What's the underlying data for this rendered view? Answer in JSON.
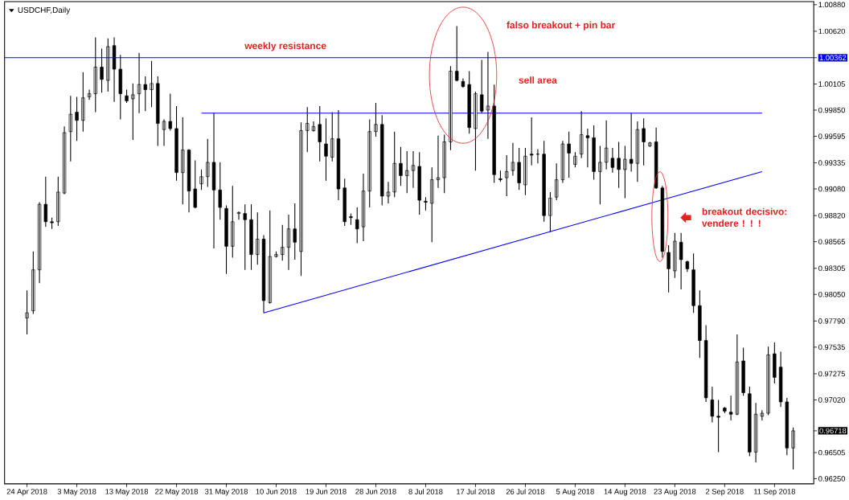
{
  "chart_data": {
    "type": "candlestick",
    "title": "USDCHF,Daily",
    "categories": [
      "24 Apr 2018",
      null,
      null,
      null,
      null,
      null,
      null,
      null,
      "3 May 2018",
      null,
      null,
      null,
      null,
      null,
      null,
      null,
      "13 May 2018",
      null,
      null,
      null,
      null,
      null,
      null,
      null,
      "22 May 2018",
      null,
      null,
      null,
      null,
      null,
      null,
      null,
      "31 May 2018",
      null,
      null,
      null,
      null,
      null,
      null,
      null,
      "10 Jun 2018",
      null,
      null,
      null,
      null,
      null,
      null,
      null,
      "19 Jun 2018",
      null,
      null,
      null,
      null,
      null,
      null,
      null,
      "28 Jun 2018",
      null,
      null,
      null,
      null,
      null,
      null,
      null,
      "8 Jul 2018",
      null,
      null,
      null,
      null,
      null,
      null,
      null,
      "17 Jul 2018",
      null,
      null,
      null,
      null,
      null,
      null,
      null,
      "26 Jul 2018",
      null,
      null,
      null,
      null,
      null,
      null,
      null,
      "5 Aug 2018",
      null,
      null,
      null,
      null,
      null,
      null,
      null,
      "14 Aug 2018",
      null,
      null,
      null,
      null,
      null,
      null,
      null,
      "23 Aug 2018",
      null,
      null,
      null,
      null,
      null,
      null,
      null,
      "2 Sep 2018",
      null,
      null,
      null,
      null,
      null,
      null,
      null,
      "11 Sep 2018",
      null,
      null,
      null
    ],
    "ohlc": [
      [
        0.9782,
        0.9809,
        0.9766,
        0.9787
      ],
      [
        0.9789,
        0.9847,
        0.9786,
        0.9829
      ],
      [
        0.9829,
        0.9895,
        0.9816,
        0.9893
      ],
      [
        0.9893,
        0.992,
        0.9871,
        0.9876
      ],
      [
        0.9876,
        0.988,
        0.9869,
        0.9875
      ],
      [
        0.9876,
        0.992,
        0.9872,
        0.9905
      ],
      [
        0.9904,
        0.9969,
        0.9903,
        0.9963
      ],
      [
        0.9964,
        0.9999,
        0.9935,
        0.9981
      ],
      [
        0.9983,
        0.9998,
        0.9955,
        0.9975
      ],
      [
        0.9975,
        1.0022,
        0.9964,
        0.9997
      ],
      [
        0.9998,
        1.0005,
        0.9995,
        1.0001
      ],
      [
        1.0001,
        1.0056,
        0.9983,
        1.0027
      ],
      [
        1.0027,
        1.0045,
        1.0002,
        1.0015
      ],
      [
        1.0014,
        1.0055,
        1.0003,
        1.0047
      ],
      [
        1.0048,
        1.0056,
        0.9993,
        1.0025
      ],
      [
        1.0025,
        1.0039,
        0.9976,
        1.0001
      ],
      [
        0.9999,
        1.0005,
        0.9992,
        0.9994
      ],
      [
        0.9996,
        1.0011,
        0.9956,
        1.0
      ],
      [
        1.0001,
        1.0041,
        0.9982,
        1.001
      ],
      [
        1.001,
        1.0018,
        0.9984,
        1.0005
      ],
      [
        1.0005,
        1.0033,
        0.9988,
        1.0011
      ],
      [
        1.0011,
        1.0018,
        0.995,
        0.9972
      ],
      [
        0.9966,
        0.9976,
        0.995,
        0.9974
      ],
      [
        0.9974,
        1.0001,
        0.9965,
        0.9967
      ],
      [
        0.9967,
        0.9989,
        0.9916,
        0.9924
      ],
      [
        0.9924,
        0.9978,
        0.9893,
        0.9946
      ],
      [
        0.9946,
        0.9947,
        0.9885,
        0.9906
      ],
      [
        0.9908,
        0.9936,
        0.9889,
        0.989
      ],
      [
        0.9913,
        0.9927,
        0.9907,
        0.992
      ],
      [
        0.992,
        0.9957,
        0.991,
        0.9934
      ],
      [
        0.9934,
        0.9982,
        0.985,
        0.9907
      ],
      [
        0.9907,
        0.9934,
        0.9878,
        0.989
      ],
      [
        0.9889,
        0.9892,
        0.9825,
        0.9852
      ],
      [
        0.9852,
        0.9911,
        0.9841,
        0.9876
      ],
      [
        0.9884,
        0.9886,
        0.9878,
        0.9885
      ],
      [
        0.9884,
        0.9893,
        0.9829,
        0.9878
      ],
      [
        0.9878,
        0.9893,
        0.9829,
        0.9844
      ],
      [
        0.9844,
        0.9885,
        0.9834,
        0.9859
      ],
      [
        0.9859,
        0.9863,
        0.9787,
        0.9799
      ],
      [
        0.9797,
        0.9887,
        0.9796,
        0.9842
      ],
      [
        0.9842,
        0.9847,
        0.9841,
        0.9844
      ],
      [
        0.9844,
        0.9873,
        0.9838,
        0.9851
      ],
      [
        0.9851,
        0.9883,
        0.9829,
        0.9869
      ],
      [
        0.9869,
        0.9894,
        0.9839,
        0.9856
      ],
      [
        0.9847,
        0.9973,
        0.9823,
        0.9965
      ],
      [
        0.9965,
        0.9988,
        0.9944,
        0.9972
      ],
      [
        0.9965,
        0.9974,
        0.9964,
        0.9969
      ],
      [
        0.9971,
        0.9989,
        0.9935,
        0.9954
      ],
      [
        0.9952,
        0.9977,
        0.9916,
        0.994
      ],
      [
        0.9939,
        0.9983,
        0.9935,
        0.9957
      ],
      [
        0.9957,
        0.9985,
        0.9897,
        0.9908
      ],
      [
        0.9909,
        0.9918,
        0.9872,
        0.9876
      ],
      [
        0.9881,
        0.9884,
        0.9873,
        0.988
      ],
      [
        0.9878,
        0.989,
        0.9855,
        0.9869
      ],
      [
        0.9871,
        0.9923,
        0.9857,
        0.9906
      ],
      [
        0.9906,
        0.9976,
        0.989,
        0.9964
      ],
      [
        0.9964,
        0.9992,
        0.9959,
        0.9971
      ],
      [
        0.9971,
        0.998,
        0.9892,
        0.9901
      ],
      [
        0.9901,
        0.9915,
        0.9894,
        0.9905
      ],
      [
        0.9905,
        0.9964,
        0.99,
        0.9933
      ],
      [
        0.9933,
        0.9949,
        0.9911,
        0.9921
      ],
      [
        0.9921,
        0.9945,
        0.9904,
        0.9926
      ],
      [
        0.9926,
        0.9945,
        0.9909,
        0.9931
      ],
      [
        0.993,
        0.9944,
        0.9883,
        0.9897
      ],
      [
        0.9896,
        0.99,
        0.9887,
        0.9895
      ],
      [
        0.9894,
        0.9929,
        0.9856,
        0.9917
      ],
      [
        0.9917,
        0.996,
        0.9909,
        0.9919
      ],
      [
        0.9919,
        0.9961,
        0.9904,
        0.9954
      ],
      [
        0.9954,
        1.0028,
        0.9946,
        1.0023
      ],
      [
        1.0023,
        1.0067,
        1.0013,
        1.0014
      ],
      [
        1.0013,
        1.0016,
        1.0007,
        1.0008
      ],
      [
        1.001,
        1.0023,
        0.9962,
        0.9968
      ],
      [
        0.9967,
        1.0003,
        0.9926,
        1.0001
      ],
      [
        1.0,
        1.0034,
        0.9982,
        0.9984
      ],
      [
        0.9985,
        1.0042,
        0.9957,
        0.9989
      ],
      [
        0.9989,
        1.001,
        0.9914,
        0.9922
      ],
      [
        0.9918,
        0.9926,
        0.9915,
        0.9917
      ],
      [
        0.9919,
        0.9941,
        0.9901,
        0.9925
      ],
      [
        0.9926,
        0.9953,
        0.9921,
        0.9934
      ],
      [
        0.9934,
        0.9948,
        0.9907,
        0.9914
      ],
      [
        0.9912,
        0.9948,
        0.9902,
        0.994
      ],
      [
        0.9942,
        0.9978,
        0.9931,
        0.9941
      ],
      [
        0.9942,
        0.9947,
        0.9933,
        0.9942
      ],
      [
        0.9942,
        0.9955,
        0.9876,
        0.9882
      ],
      [
        0.9882,
        0.9905,
        0.9866,
        0.9899
      ],
      [
        0.99,
        0.9933,
        0.9897,
        0.9917
      ],
      [
        0.9917,
        0.9955,
        0.9914,
        0.9952
      ],
      [
        0.9952,
        0.9964,
        0.9919,
        0.9943
      ],
      [
        0.9932,
        0.9944,
        0.9929,
        0.994
      ],
      [
        0.9942,
        0.9984,
        0.9938,
        0.9961
      ],
      [
        0.996,
        0.9967,
        0.9929,
        0.9958
      ],
      [
        0.9958,
        0.997,
        0.9917,
        0.9925
      ],
      [
        0.9925,
        0.995,
        0.9893,
        0.9934
      ],
      [
        0.9934,
        0.9975,
        0.9927,
        0.9948
      ],
      [
        0.9938,
        0.9948,
        0.9924,
        0.9929
      ],
      [
        0.9938,
        0.9954,
        0.9909,
        0.9927
      ],
      [
        0.9927,
        0.995,
        0.9899,
        0.9937
      ],
      [
        0.9937,
        0.9982,
        0.9925,
        0.9933
      ],
      [
        0.9933,
        0.9974,
        0.9915,
        0.9966
      ],
      [
        0.9967,
        0.9977,
        0.9931,
        0.9954
      ],
      [
        0.995,
        0.9954,
        0.9949,
        0.9953
      ],
      [
        0.9954,
        0.9968,
        0.9908,
        0.9909
      ],
      [
        0.9909,
        0.9911,
        0.9841,
        0.9847
      ],
      [
        0.9846,
        0.9853,
        0.9807,
        0.983
      ],
      [
        0.9828,
        0.9865,
        0.9821,
        0.9857
      ],
      [
        0.9856,
        0.9865,
        0.981,
        0.9839
      ],
      [
        0.9837,
        0.9838,
        0.9827,
        0.983
      ],
      [
        0.9829,
        0.9845,
        0.9787,
        0.9794
      ],
      [
        0.9794,
        0.9809,
        0.9743,
        0.976
      ],
      [
        0.976,
        0.9775,
        0.97,
        0.9704
      ],
      [
        0.9702,
        0.9715,
        0.968,
        0.9686
      ],
      [
        0.9686,
        0.9702,
        0.9651,
        0.9685
      ],
      [
        0.9694,
        0.9695,
        0.9689,
        0.9691
      ],
      [
        0.969,
        0.9706,
        0.9682,
        0.9688
      ],
      [
        0.9688,
        0.9766,
        0.9687,
        0.9739
      ],
      [
        0.974,
        0.9753,
        0.9706,
        0.9709
      ],
      [
        0.9708,
        0.9715,
        0.9647,
        0.9651
      ],
      [
        0.9651,
        0.9699,
        0.9641,
        0.9688
      ],
      [
        0.9686,
        0.9692,
        0.9682,
        0.9689
      ],
      [
        0.9689,
        0.9754,
        0.9687,
        0.9746
      ],
      [
        0.9747,
        0.9758,
        0.9718,
        0.9724
      ],
      [
        0.9734,
        0.9749,
        0.9695,
        0.97
      ],
      [
        0.97,
        0.9704,
        0.9648,
        0.9655
      ],
      [
        0.9655,
        0.9675,
        0.9634,
        0.96718
      ]
    ],
    "series": [
      {
        "type": "line",
        "color": "#0000ff",
        "values": [
          null,
          null,
          null,
          null,
          null,
          null,
          null,
          null,
          null,
          null,
          null,
          null,
          null,
          null,
          null,
          null,
          null,
          null,
          null,
          null,
          null,
          null,
          null,
          null,
          null,
          null,
          null,
          null,
          0.9982,
          null,
          null,
          null,
          null,
          null,
          null,
          null,
          null,
          null,
          null,
          null,
          null,
          null,
          null,
          null,
          null,
          null,
          null,
          null,
          null,
          null,
          null,
          null,
          null,
          null,
          null,
          null,
          null,
          null,
          null,
          null,
          null,
          null,
          null,
          null,
          null,
          null,
          null,
          null,
          null,
          null,
          null,
          null,
          null,
          null,
          null,
          null,
          null,
          null,
          null,
          null,
          null,
          null,
          null,
          null,
          null,
          null,
          null,
          null,
          null,
          null,
          null,
          null,
          null,
          null,
          null,
          null,
          null,
          null,
          null,
          null,
          null,
          null,
          null,
          null,
          null,
          null,
          null,
          null,
          null,
          null,
          null,
          null,
          null,
          null,
          null,
          null,
          null,
          null,
          0.9982,
          null,
          null,
          null,
          null,
          null
        ]
      },
      {
        "type": "line",
        "color": "#0000ff",
        "values": [
          null,
          null,
          null,
          null,
          null,
          null,
          null,
          null,
          null,
          null,
          null,
          null,
          null,
          null,
          null,
          null,
          null,
          null,
          null,
          null,
          null,
          null,
          null,
          null,
          null,
          null,
          null,
          null,
          null,
          null,
          null,
          null,
          null,
          null,
          null,
          null,
          null,
          null,
          0.9787,
          null,
          null,
          null,
          null,
          null,
          null,
          null,
          null,
          null,
          null,
          null,
          null,
          null,
          null,
          null,
          null,
          null,
          null,
          null,
          null,
          null,
          null,
          null,
          null,
          null,
          null,
          null,
          null,
          null,
          null,
          null,
          null,
          null,
          null,
          null,
          null,
          null,
          null,
          null,
          null,
          null,
          null,
          null,
          null,
          null,
          null,
          null,
          null,
          null,
          null,
          null,
          null,
          null,
          null,
          null,
          null,
          null,
          null,
          null,
          null,
          null,
          null,
          null,
          null,
          null,
          null,
          null,
          null,
          null,
          null,
          null,
          null,
          null,
          null,
          null,
          null,
          null,
          null,
          null,
          0.9925,
          null,
          null,
          null,
          null,
          null
        ]
      }
    ],
    "ylim": [
      0.962,
      1.0091
    ],
    "yticks": [
      {
        "value": 1.0088,
        "label": "1.00880"
      },
      {
        "value": 1.0062,
        "label": "1.00620"
      },
      {
        "value": 1.00362,
        "label": "1.00362"
      },
      {
        "value": 1.00105,
        "label": "1.00105"
      },
      {
        "value": 0.9985,
        "label": "0.99850"
      },
      {
        "value": 0.99595,
        "label": "0.99595"
      },
      {
        "value": 0.99335,
        "label": "0.99335"
      },
      {
        "value": 0.9908,
        "label": "0.99080"
      },
      {
        "value": 0.9882,
        "label": "0.98820"
      },
      {
        "value": 0.98565,
        "label": "0.98565"
      },
      {
        "value": 0.98305,
        "label": "0.98305"
      },
      {
        "value": 0.9805,
        "label": "0.98050"
      },
      {
        "value": 0.9779,
        "label": "0.97790"
      },
      {
        "value": 0.97535,
        "label": "0.97535"
      },
      {
        "value": 0.97275,
        "label": "0.97275"
      },
      {
        "value": 0.9702,
        "label": "0.97020"
      },
      {
        "value": 0.96718,
        "label": "0.96718"
      },
      {
        "value": 0.96505,
        "label": "0.96505"
      },
      {
        "value": 0.9625,
        "label": "0.96250"
      }
    ],
    "ref_lines": [
      {
        "axis": "y",
        "value": 1.00362,
        "label": "weekly resistance",
        "color": "#0000ff"
      }
    ],
    "annotations": [
      "falso breakout + pin bar",
      "sell area",
      "breakout decisivo: vendere ! ! !"
    ]
  }
}
